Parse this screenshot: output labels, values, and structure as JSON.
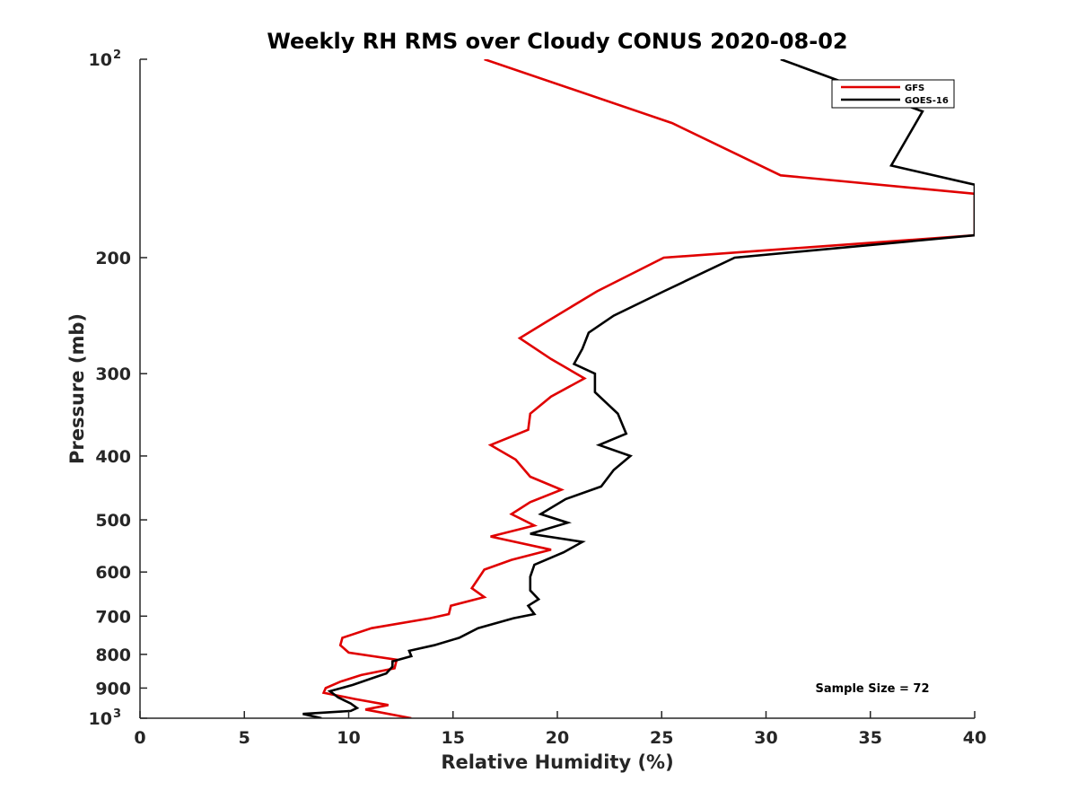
{
  "chart_data": {
    "type": "line",
    "title": "Weekly RH RMS over Cloudy CONUS 2020-08-02",
    "xlabel": "Relative Humidity (%)",
    "ylabel": "Pressure (mb)",
    "xlim": [
      0,
      40
    ],
    "ylim": [
      100,
      1000
    ],
    "y_scale": "log",
    "y_reversed": true,
    "x_ticks": [
      "0",
      "5",
      "10",
      "15",
      "20",
      "25",
      "30",
      "35",
      "40"
    ],
    "y_ticks": [
      {
        "value": 100,
        "base": "10",
        "exp": "2"
      },
      {
        "value": 200,
        "label": "200"
      },
      {
        "value": 300,
        "label": "300"
      },
      {
        "value": 400,
        "label": "400"
      },
      {
        "value": 500,
        "label": "500"
      },
      {
        "value": 600,
        "label": "600"
      },
      {
        "value": 700,
        "label": "700"
      },
      {
        "value": 800,
        "label": "800"
      },
      {
        "value": 900,
        "label": "900"
      },
      {
        "value": 1000,
        "base": "10",
        "exp": "3"
      }
    ],
    "grid": false,
    "legend_position": "top-right",
    "annotation": "Sample Size = 72",
    "series": [
      {
        "name": "GFS",
        "color": "#e00000",
        "points": [
          [
            16.5,
            100
          ],
          [
            25.5,
            125
          ],
          [
            30.7,
            150
          ],
          [
            40,
            160
          ],
          [
            40,
            185
          ],
          [
            25.1,
            200
          ],
          [
            21.9,
            225
          ],
          [
            19.5,
            250
          ],
          [
            18.2,
            265
          ],
          [
            19.7,
            285
          ],
          [
            21.3,
            305
          ],
          [
            19.7,
            325
          ],
          [
            18.7,
            345
          ],
          [
            18.6,
            365
          ],
          [
            16.8,
            385
          ],
          [
            18.0,
            405
          ],
          [
            18.7,
            430
          ],
          [
            20.2,
            450
          ],
          [
            18.7,
            470
          ],
          [
            17.8,
            490
          ],
          [
            18.9,
            510
          ],
          [
            16.8,
            530
          ],
          [
            19.7,
            555
          ],
          [
            17.8,
            575
          ],
          [
            16.5,
            595
          ],
          [
            16.2,
            615
          ],
          [
            15.9,
            635
          ],
          [
            16.5,
            655
          ],
          [
            14.9,
            675
          ],
          [
            14.8,
            695
          ],
          [
            13.9,
            705
          ],
          [
            11.1,
            730
          ],
          [
            9.7,
            755
          ],
          [
            9.6,
            775
          ],
          [
            10.0,
            795
          ],
          [
            12.3,
            815
          ],
          [
            12.2,
            840
          ],
          [
            10.6,
            860
          ],
          [
            9.6,
            880
          ],
          [
            8.9,
            900
          ],
          [
            8.8,
            915
          ],
          [
            10.3,
            935
          ],
          [
            11.9,
            955
          ],
          [
            10.8,
            970
          ],
          [
            13.0,
            1000
          ]
        ]
      },
      {
        "name": "GOES-16",
        "color": "#000000",
        "points": [
          [
            30.7,
            100
          ],
          [
            37.5,
            120
          ],
          [
            36.0,
            145
          ],
          [
            40,
            155
          ],
          [
            40,
            185
          ],
          [
            28.5,
            200
          ],
          [
            25.1,
            225
          ],
          [
            22.7,
            245
          ],
          [
            21.5,
            260
          ],
          [
            21.2,
            275
          ],
          [
            20.8,
            290
          ],
          [
            21.8,
            300
          ],
          [
            21.8,
            320
          ],
          [
            22.9,
            345
          ],
          [
            23.3,
            370
          ],
          [
            22.0,
            385
          ],
          [
            23.5,
            400
          ],
          [
            22.7,
            420
          ],
          [
            22.1,
            445
          ],
          [
            20.4,
            465
          ],
          [
            19.2,
            490
          ],
          [
            20.5,
            505
          ],
          [
            18.7,
            525
          ],
          [
            21.2,
            540
          ],
          [
            20.3,
            560
          ],
          [
            18.9,
            585
          ],
          [
            18.7,
            610
          ],
          [
            18.7,
            640
          ],
          [
            19.1,
            660
          ],
          [
            18.6,
            675
          ],
          [
            18.9,
            695
          ],
          [
            17.9,
            705
          ],
          [
            16.2,
            730
          ],
          [
            15.3,
            755
          ],
          [
            14.1,
            775
          ],
          [
            12.9,
            790
          ],
          [
            13.0,
            805
          ],
          [
            12.1,
            820
          ],
          [
            12.1,
            835
          ],
          [
            11.8,
            855
          ],
          [
            11.1,
            870
          ],
          [
            10.2,
            890
          ],
          [
            9.1,
            910
          ],
          [
            9.5,
            930
          ],
          [
            10.1,
            950
          ],
          [
            10.4,
            965
          ],
          [
            10.1,
            975
          ],
          [
            7.8,
            985
          ],
          [
            8.7,
            1000
          ]
        ]
      }
    ]
  }
}
